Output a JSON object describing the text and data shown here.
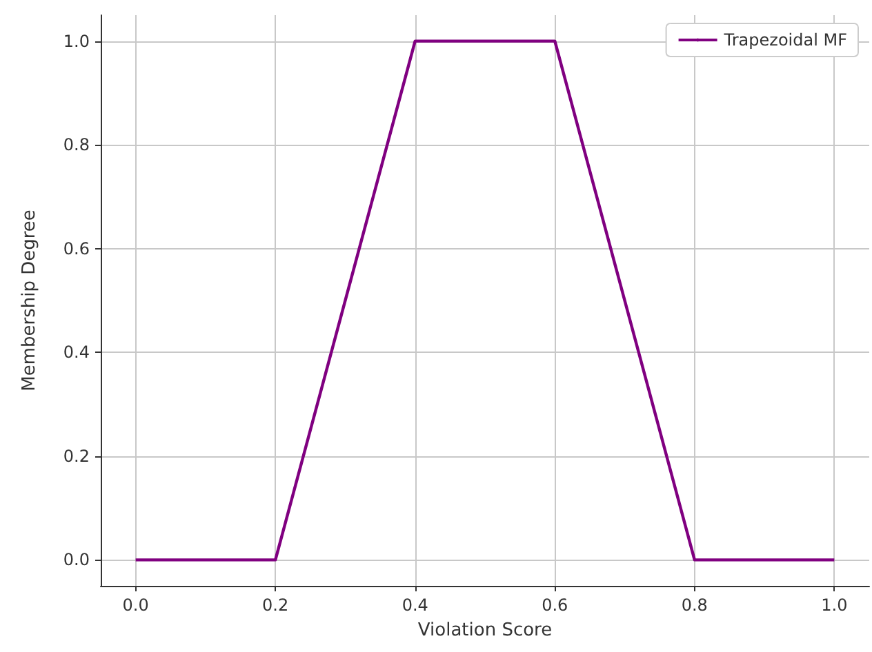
{
  "chart_data": {
    "type": "line",
    "xlabel": "Violation Score",
    "ylabel": "Membership Degree",
    "x": [
      0,
      0.2,
      0.4,
      0.6,
      0.8,
      1
    ],
    "series": [
      {
        "name": "Trapezoidal MF",
        "color": "#800080",
        "values": [
          0,
          0,
          1,
          1,
          0,
          0
        ]
      }
    ],
    "xlim": [
      -0.05,
      1.05
    ],
    "ylim": [
      -0.05,
      1.05
    ],
    "xticks": [
      {
        "value": 0,
        "label": "0.0"
      },
      {
        "value": 0.2,
        "label": "0.2"
      },
      {
        "value": 0.4,
        "label": "0.4"
      },
      {
        "value": 0.6,
        "label": "0.6"
      },
      {
        "value": 0.8,
        "label": "0.8"
      },
      {
        "value": 1,
        "label": "1.0"
      }
    ],
    "yticks": [
      {
        "value": 0,
        "label": "0.0"
      },
      {
        "value": 0.2,
        "label": "0.2"
      },
      {
        "value": 0.4,
        "label": "0.4"
      },
      {
        "value": 0.6,
        "label": "0.6"
      },
      {
        "value": 0.8,
        "label": "0.8"
      },
      {
        "value": 1,
        "label": "1.0"
      }
    ],
    "grid": true,
    "legend": "top right",
    "marker": "none",
    "line_style": "solid"
  }
}
